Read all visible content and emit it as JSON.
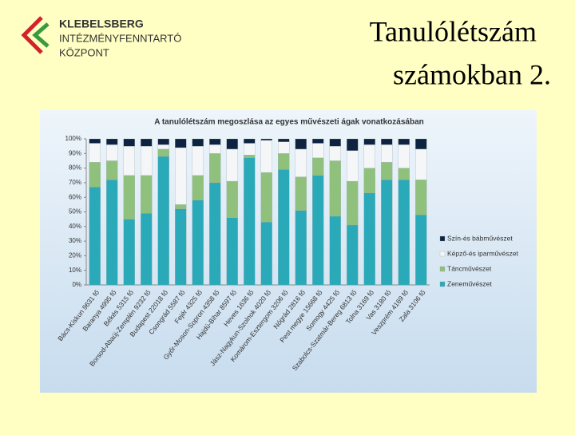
{
  "logo": {
    "lines": [
      "KLEBELSBERG",
      "INTÉZMÉNYFENNTARTÓ",
      "KÖZPONT"
    ]
  },
  "slide_title": [
    "Tanulólétszám",
    "számokban 2."
  ],
  "chart_data": {
    "type": "stacked_bar",
    "title": "A tanulólétszám megoszlása az egyes művészeti ágak vonatkozásában",
    "categories": [
      "Bács-Kiskun 9631 fő",
      "Baranya 4995 fő",
      "Békés 5315 fő",
      "Borsod-Abaúj-Zemplén 9232 fő",
      "Budapest 22018 fő",
      "Csongrád 5587 fő",
      "Fejér 4325 fő",
      "Győr-Moson-Sopron 4358 fő",
      "Hajdú-Bihar 8597 fő",
      "Heves 1636 fő",
      "Jász-Nagykun-Szolnok 4020 fő",
      "Komárom-Esztergom 3206 fő",
      "Nógrád 2816 fő",
      "Pest megye 15668 fő",
      "Somogy 4425 fő",
      "Szabolcs-Szatmár-Bereg 6813 fő",
      "Tolna 3169 fő",
      "Vas 3180 fő",
      "Veszprém 4169 fő",
      "Zala 3106 fő"
    ],
    "series": [
      {
        "name": "Zeneművészet",
        "color": "#2aa9b9",
        "values": [
          67,
          72,
          45,
          49,
          88,
          52,
          58,
          70,
          46,
          87,
          43,
          79,
          51,
          75,
          47,
          41,
          63,
          72,
          72,
          48
        ]
      },
      {
        "name": "Táncművészet",
        "color": "#8fc07c",
        "values": [
          17,
          13,
          30,
          26,
          5,
          3,
          17,
          20,
          25,
          2,
          34,
          11,
          23,
          12,
          38,
          30,
          17,
          12,
          8,
          24
        ]
      },
      {
        "name": "Képző-és iparművészet",
        "color": "#f4f6f8",
        "values": [
          13,
          11,
          20,
          20,
          3,
          39,
          20,
          6,
          22,
          8,
          22,
          8,
          19,
          10,
          10,
          21,
          16,
          12,
          16,
          21
        ]
      },
      {
        "name": "Szín-és bábművészet",
        "color": "#0d2340",
        "values": [
          3,
          4,
          5,
          5,
          4,
          6,
          5,
          4,
          7,
          3,
          1,
          2,
          7,
          3,
          5,
          8,
          4,
          4,
          4,
          7
        ]
      }
    ],
    "ylim": [
      0,
      100
    ],
    "yticks": [
      {
        "value": 0,
        "label": "0%"
      },
      {
        "value": 10,
        "label": "10%"
      },
      {
        "value": 20,
        "label": "20%"
      },
      {
        "value": 30,
        "label": "30%"
      },
      {
        "value": 40,
        "label": "40%"
      },
      {
        "value": 50,
        "label": "50%"
      },
      {
        "value": 60,
        "label": "60%"
      },
      {
        "value": 70,
        "label": "70%"
      },
      {
        "value": 80,
        "label": "80%"
      },
      {
        "value": 90,
        "label": "90%"
      },
      {
        "value": 100,
        "label": "100%"
      }
    ],
    "legend": "right"
  }
}
